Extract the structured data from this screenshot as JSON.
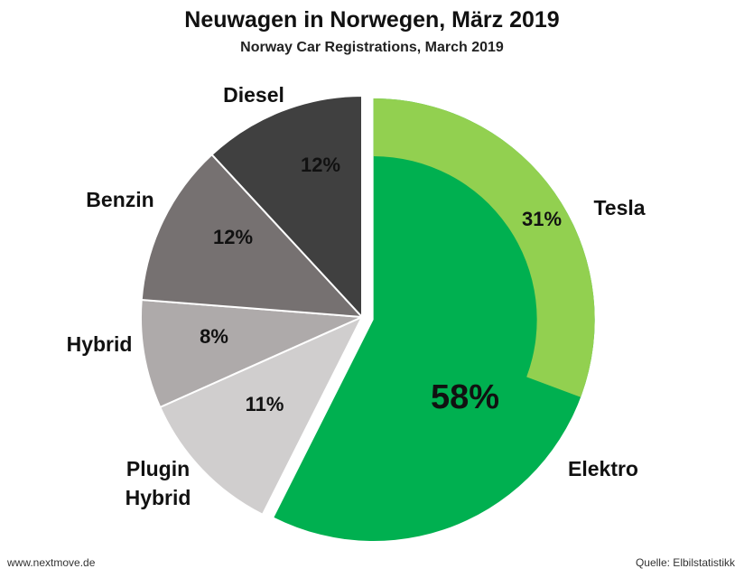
{
  "chart_data": {
    "type": "pie",
    "title": "Neuwagen in Norwegen, März 2019",
    "subtitle": "Norway Car Registrations, March 2019",
    "slices": [
      {
        "name": "Elektro",
        "value": 58,
        "label": "58%",
        "color": "#00b050",
        "exploded": true
      },
      {
        "name": "Plugin Hybrid",
        "value": 11,
        "label": "11%",
        "color": "#d0cece"
      },
      {
        "name": "Hybrid",
        "value": 8,
        "label": "8%",
        "color": "#aeaaaa"
      },
      {
        "name": "Benzin",
        "value": 12,
        "label": "12%",
        "color": "#767171"
      },
      {
        "name": "Diesel",
        "value": 12,
        "label": "12%",
        "color": "#404040"
      }
    ],
    "sub_slice": {
      "name": "Tesla",
      "value": 31,
      "label": "31%",
      "color": "#92d050",
      "parent": "Elektro"
    }
  },
  "footer": {
    "left": "www.nextmove.de",
    "right": "Quelle: Elbilstatistikk"
  }
}
